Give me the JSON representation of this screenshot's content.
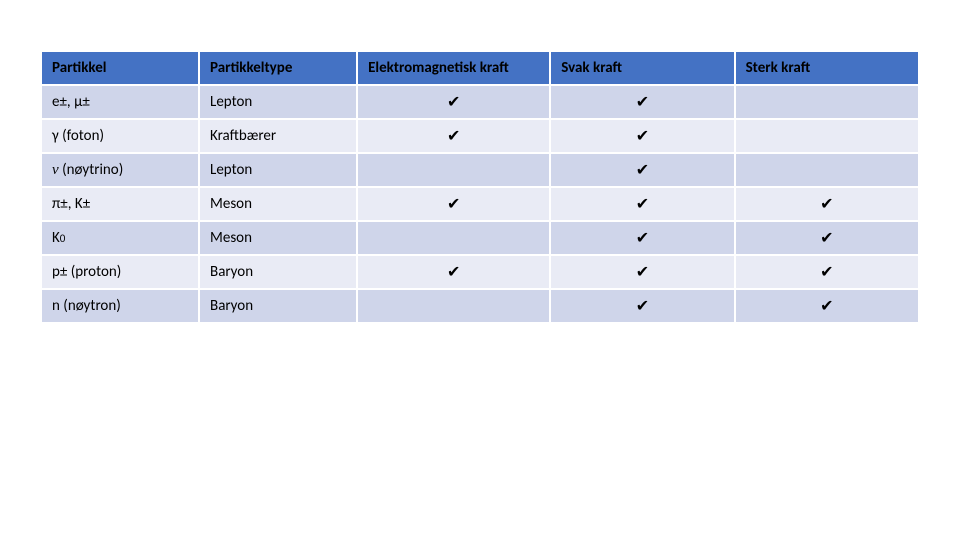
{
  "colors": {
    "header_bg": "#4472c4",
    "header_text": "#000000",
    "row_light": "#e9ebf5",
    "row_dark": "#cfd5ea",
    "check_color": "#000000"
  },
  "columns": [
    {
      "key": "partikkel",
      "label": "Partikkel",
      "width": "18%",
      "align": "left"
    },
    {
      "key": "type",
      "label": "Partikkeltype",
      "width": "18%",
      "align": "left"
    },
    {
      "key": "em",
      "label": "Elektromagnetisk kraft",
      "width": "22%",
      "align": "center"
    },
    {
      "key": "svak",
      "label": "Svak kraft",
      "width": "21%",
      "align": "center"
    },
    {
      "key": "sterk",
      "label": "Sterk kraft",
      "width": "21%",
      "align": "center"
    }
  ],
  "checkmark": "✔",
  "rows": [
    {
      "partikkel": "e±, μ±",
      "type": "Lepton",
      "em": true,
      "svak": true,
      "sterk": false
    },
    {
      "partikkel": "γ (foton)",
      "type": "Kraftbærer",
      "em": true,
      "svak": true,
      "sterk": false
    },
    {
      "partikkel_html": "<span class=\"nu\">ν</span> (nøytrino)",
      "partikkel": "ν (nøytrino)",
      "type": "Lepton",
      "em": false,
      "svak": true,
      "sterk": false
    },
    {
      "partikkel": "π±, K±",
      "type": "Meson",
      "em": true,
      "svak": true,
      "sterk": true
    },
    {
      "partikkel_html": "K<span style=\"font-size:11px\">0</span>",
      "partikkel": "K0",
      "type": "Meson",
      "em": false,
      "svak": true,
      "sterk": true
    },
    {
      "partikkel": "p± (proton)",
      "type": "Baryon",
      "em": true,
      "svak": true,
      "sterk": true
    },
    {
      "partikkel": "n (nøytron)",
      "type": "Baryon",
      "em": false,
      "svak": true,
      "sterk": true
    }
  ]
}
